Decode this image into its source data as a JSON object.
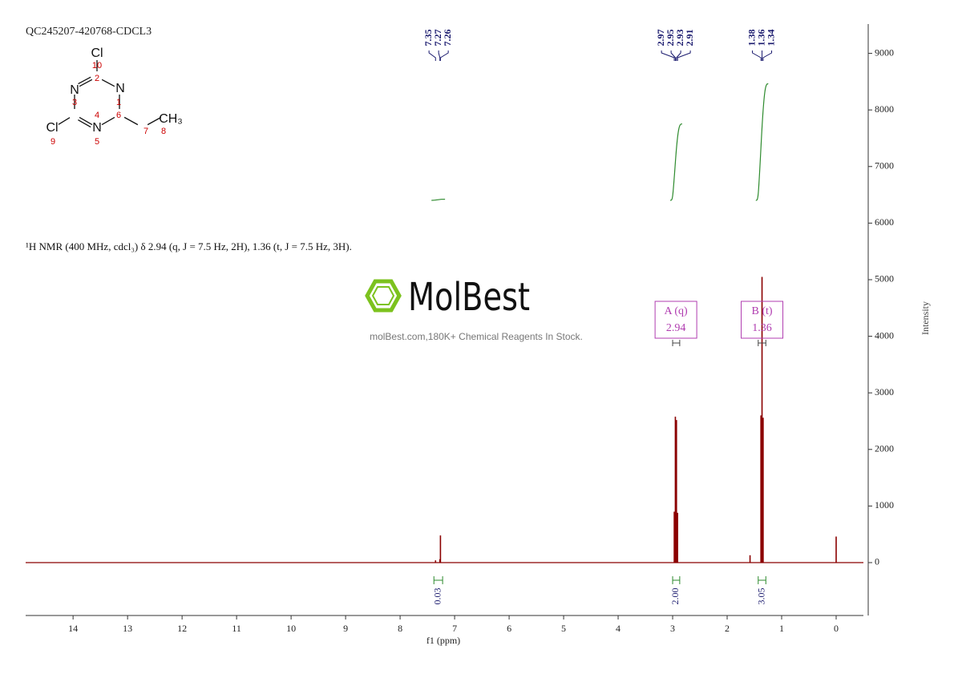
{
  "chart_data": {
    "type": "nmr",
    "title": "QC245207-420768-CDCL3",
    "description": "¹H NMR (400 MHz, cdcl₃) δ 2.94 (q, J = 7.5 Hz, 2H), 1.36 (t, J = 7.5 Hz, 3H).",
    "watermark": {
      "logo": "MolBest",
      "text": "molBest.com,180K+ Chemical Reagents In Stock."
    },
    "molecule": {
      "atoms": [
        {
          "label": "N",
          "number": 1
        },
        {
          "number": 2
        },
        {
          "label": "N",
          "number": 3
        },
        {
          "number": 4
        },
        {
          "label": "N",
          "number": 5
        },
        {
          "number": 6
        },
        {
          "number": 7
        },
        {
          "label": "CH₃",
          "number": 8
        },
        {
          "label": "Cl",
          "number": 9
        },
        {
          "label": "Cl",
          "number": 10
        }
      ]
    },
    "x_label": "f1 (ppm)",
    "y_label": "Intensity",
    "xlim": [
      14.87,
      -0.5
    ],
    "xticks": [
      14,
      13,
      12,
      11,
      10,
      9,
      8,
      7,
      6,
      5,
      4,
      3,
      2,
      1,
      0
    ],
    "ylim": [
      -935,
      9518
    ],
    "yticks": [
      0,
      1000,
      2000,
      3000,
      4000,
      5000,
      6000,
      7000,
      8000,
      9000
    ],
    "series": [
      {
        "name": "spectrum",
        "color": "#8b0000",
        "x": [
          7.35,
          7.27,
          7.26,
          2.97,
          2.95,
          2.93,
          2.91,
          1.58,
          1.38,
          1.36,
          1.34,
          0.0
        ],
        "values": [
          40,
          60,
          480,
          900,
          2580,
          2520,
          880,
          130,
          2600,
          5050,
          2560,
          460
        ]
      }
    ],
    "peak_label_groups": [
      [
        7.35,
        7.27,
        7.26
      ],
      [
        2.97,
        2.95,
        2.93,
        2.91
      ],
      [
        1.38,
        1.36,
        1.34
      ]
    ],
    "integrals": [
      {
        "range": [
          7.38,
          7.22
        ],
        "value": 0.03
      },
      {
        "range": [
          3.0,
          2.87
        ],
        "value": 2,
        "label": "2.00"
      },
      {
        "range": [
          1.43,
          1.29
        ],
        "value": 3.05
      }
    ],
    "multiplets": [
      {
        "label": "A (q)",
        "shift": 2.94,
        "range": [
          3.0,
          2.87
        ]
      },
      {
        "label": "B (t)",
        "shift": 1.36,
        "range": [
          1.43,
          1.29
        ]
      }
    ]
  }
}
